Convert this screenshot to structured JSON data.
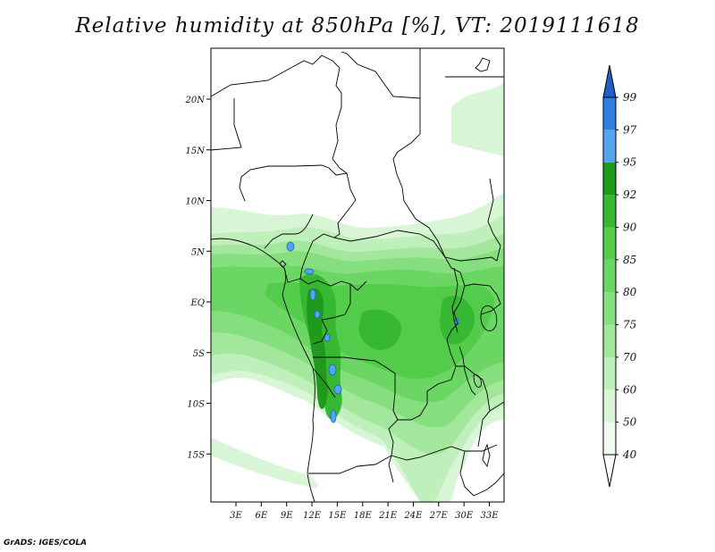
{
  "title": "Relative humidity at 850hPa [%], VT: 2019111618",
  "credit": "GrADS: IGES/COLA",
  "map": {
    "lat_labels": [
      "20N",
      "15N",
      "10N",
      "5N",
      "EQ",
      "5S",
      "10S",
      "15S"
    ],
    "lon_labels": [
      "3E",
      "6E",
      "9E",
      "12E",
      "15E",
      "18E",
      "21E",
      "24E",
      "27E",
      "30E",
      "33E"
    ]
  },
  "colorbar": {
    "levels": [
      {
        "label": "40",
        "color": "#f0fbf0"
      },
      {
        "label": "50",
        "color": "#d8f5d6"
      },
      {
        "label": "60",
        "color": "#bfefba"
      },
      {
        "label": "70",
        "color": "#a2e79b"
      },
      {
        "label": "75",
        "color": "#86df7e"
      },
      {
        "label": "80",
        "color": "#6bd663"
      },
      {
        "label": "85",
        "color": "#52cc4a"
      },
      {
        "label": "90",
        "color": "#36b832"
      },
      {
        "label": "92",
        "color": "#1f9a1c"
      },
      {
        "label": "95",
        "color": "#55a5ee"
      },
      {
        "label": "97",
        "color": "#2e7ee0"
      },
      {
        "label": "99",
        "color": "#1e5fc8"
      }
    ],
    "low_end_color": "#ffffff",
    "high_end_color": "#1e5fc8"
  }
}
